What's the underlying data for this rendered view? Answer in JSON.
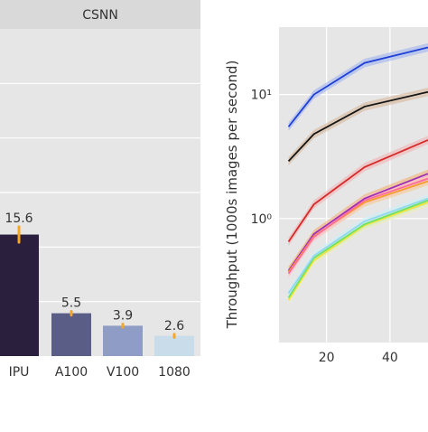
{
  "chart_data": [
    {
      "type": "bar",
      "title": "CSNN",
      "categories": [
        "IPU",
        "A100",
        "V100",
        "1080"
      ],
      "values": [
        15.6,
        5.5,
        3.9,
        2.6
      ],
      "value_labels": [
        "15.6",
        "5.5",
        "3.9",
        "2.6"
      ],
      "error": [
        1.0,
        0.25,
        0.2,
        0.2
      ],
      "ylim": [
        0,
        42
      ],
      "grid": true,
      "colors": {
        "bars": [
          "#2a1f3d",
          "#5a5e87",
          "#8e9cc6",
          "#c9dcea"
        ],
        "error": "#f5a623",
        "panel": "#e6e6e6",
        "title_strip": "#d9d9d9"
      }
    },
    {
      "type": "line",
      "ylabel": "Throughput (1000s images per second)",
      "xlabel": "",
      "y_scale": "log",
      "xlim": [
        5,
        52
      ],
      "ylim": [
        0.1,
        35
      ],
      "x_ticks": [
        20,
        40
      ],
      "x_tick_labels": [
        "20",
        "40"
      ],
      "y_ticks": [
        1,
        10
      ],
      "y_tick_labels": [
        "10⁰",
        "10¹"
      ],
      "grid": true,
      "x": [
        8,
        16,
        32,
        52
      ],
      "series": [
        {
          "color": "#1f3fd6",
          "band": "#9fb3ee",
          "values": [
            5.5,
            10.0,
            18.0,
            24.0
          ]
        },
        {
          "color": "#151515",
          "band": "#d6b59a",
          "values": [
            2.9,
            4.8,
            8.0,
            10.5
          ]
        },
        {
          "color": "#d62a2a",
          "band": "#f1b3b3",
          "values": [
            0.65,
            1.3,
            2.6,
            4.3
          ]
        },
        {
          "color": "#9c2fb5",
          "band": "#f0b070",
          "values": [
            0.38,
            0.75,
            1.45,
            2.3
          ]
        },
        {
          "color": "#f2a02a",
          "band": "#f6c98a",
          "values": [
            0.37,
            0.72,
            1.35,
            2.0
          ]
        },
        {
          "color": "#ff6b9a",
          "band": "#ffc2d6",
          "values": [
            0.36,
            0.71,
            1.4,
            2.1
          ]
        },
        {
          "color": "#f2e43a",
          "band": "#f7efb0",
          "values": [
            0.22,
            0.46,
            0.88,
            1.35
          ]
        },
        {
          "color": "#6fe06a",
          "band": "#c5f0c2",
          "values": [
            0.23,
            0.48,
            0.9,
            1.4
          ]
        },
        {
          "color": "#8fd7f0",
          "band": "#cdeef8",
          "values": [
            0.25,
            0.5,
            0.95,
            1.45
          ]
        }
      ]
    }
  ]
}
